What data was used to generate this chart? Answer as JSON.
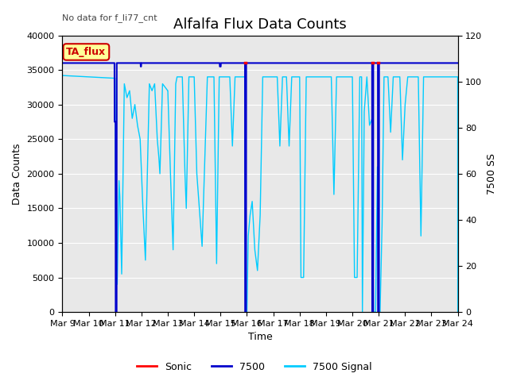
{
  "title": "Alfalfa Flux Data Counts",
  "top_left_text": "No data for f_li77_cnt",
  "annotation_text": "TA_flux",
  "xlabel": "Time",
  "ylabel_left": "Data Counts",
  "ylabel_right": "7500 SS",
  "ylim_left": [
    0,
    40000
  ],
  "ylim_right": [
    0,
    120
  ],
  "plot_bg_color": "#e8e8e8",
  "fig_bg_color": "#ffffff",
  "grid_color": "#ffffff",
  "x_tick_labels": [
    "Mar 9",
    "Mar 10",
    "Mar 11",
    "Mar 12",
    "Mar 13",
    "Mar 14",
    "Mar 15",
    "Mar 16",
    "Mar 17",
    "Mar 18",
    "Mar 19",
    "Mar 20",
    "Mar 21",
    "Mar 22",
    "Mar 23",
    "Mar 24"
  ],
  "legend_entries": [
    "Sonic",
    "7500",
    "7500 Signal"
  ],
  "sonic_color": "#ff0000",
  "blue_color": "#0000cc",
  "cyan_color": "#00ccff",
  "annotation_color": "#cc0000",
  "annotation_bg": "#ffff99",
  "title_fontsize": 13,
  "label_fontsize": 9,
  "tick_fontsize": 8
}
